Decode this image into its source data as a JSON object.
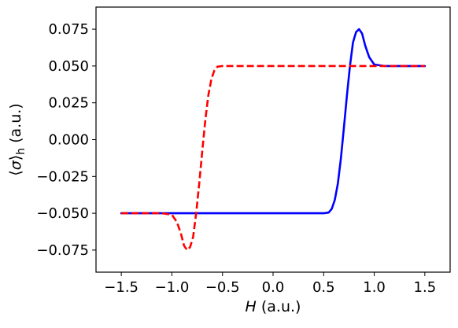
{
  "chart_data": {
    "type": "line",
    "title": "",
    "xlabel_italic": "H",
    "xlabel_rest": " (a.u.)",
    "ylabel_open": "⟨",
    "ylabel_sigma": "σ",
    "ylabel_close": "⟩",
    "ylabel_sub": "h",
    "ylabel_rest": " (a.u.)",
    "xlim": [
      -1.75,
      1.75
    ],
    "ylim": [
      -0.09,
      0.09
    ],
    "xticks": [
      -1.5,
      -1.0,
      -0.5,
      0.0,
      0.5,
      1.0,
      1.5
    ],
    "xtick_labels": [
      "−1.5",
      "−1.0",
      "−0.5",
      "0.0",
      "0.5",
      "1.0",
      "1.5"
    ],
    "yticks": [
      0.075,
      0.05,
      0.025,
      0.0,
      -0.025,
      -0.05,
      -0.075
    ],
    "ytick_labels": [
      "0.075",
      "0.050",
      "0.025",
      "0.000",
      "−0.025",
      "−0.050",
      "−0.075"
    ],
    "grid": false,
    "legend": "none",
    "series": [
      {
        "style": "solid",
        "color": "#0000ff",
        "x": [
          -1.5,
          0.4,
          0.5,
          0.55,
          0.58,
          0.61,
          0.64,
          0.67,
          0.7,
          0.73,
          0.76,
          0.79,
          0.82,
          0.85,
          0.88,
          0.91,
          0.95,
          1.0,
          1.1,
          1.5
        ],
        "y": [
          -0.05,
          -0.05,
          -0.05,
          -0.0495,
          -0.047,
          -0.041,
          -0.03,
          -0.013,
          0.008,
          0.03,
          0.05,
          0.066,
          0.073,
          0.075,
          0.072,
          0.064,
          0.056,
          0.051,
          0.05,
          0.05
        ]
      },
      {
        "style": "dashed",
        "color": "#ff0000",
        "x": [
          -1.5,
          -1.1,
          -1.0,
          -0.95,
          -0.91,
          -0.88,
          -0.85,
          -0.82,
          -0.79,
          -0.76,
          -0.73,
          -0.7,
          -0.67,
          -0.64,
          -0.61,
          -0.58,
          -0.55,
          -0.5,
          -0.4,
          1.5
        ],
        "y": [
          -0.05,
          -0.05,
          -0.051,
          -0.056,
          -0.064,
          -0.072,
          -0.075,
          -0.073,
          -0.066,
          -0.05,
          -0.03,
          -0.008,
          0.013,
          0.03,
          0.041,
          0.047,
          0.0495,
          0.05,
          0.05,
          0.05
        ]
      }
    ]
  }
}
